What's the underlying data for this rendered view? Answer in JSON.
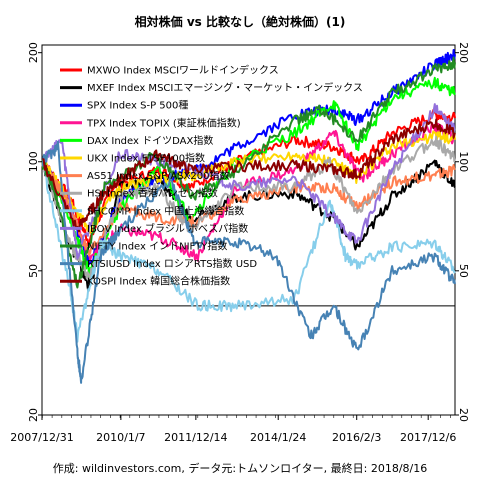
{
  "title": "相対株価 vs 比較なし（絶対株価）(1)",
  "footer": {
    "credit_label": "作成: wildinvestors.com, データ元:トムソンロイター, 最終日: 2018/8/16"
  },
  "chart_data": {
    "type": "line",
    "title": "相対株価 vs 比較なし（絶対株価）(1)",
    "y_scale": "log",
    "ylim": [
      20,
      210
    ],
    "y_ticks": [
      20,
      50,
      100,
      200
    ],
    "x_ticks": [
      "2007/12/31",
      "2010/1/7",
      "2011/12/14",
      "2014/1/24",
      "2016/2/3",
      "2017/12/6"
    ],
    "x_range": [
      2007.99,
      2018.62
    ],
    "reference_line": 40,
    "grid": false,
    "legend_position": "top-left",
    "series": [
      {
        "name": "MXWO Index MSCIワールドインデックス",
        "color": "#ff0000",
        "points": [
          [
            2008.0,
            100
          ],
          [
            2008.7,
            80
          ],
          [
            2009.2,
            60
          ],
          [
            2009.8,
            85
          ],
          [
            2011.0,
            95
          ],
          [
            2011.8,
            85
          ],
          [
            2013.0,
            100
          ],
          [
            2014.5,
            115
          ],
          [
            2015.5,
            110
          ],
          [
            2016.2,
            100
          ],
          [
            2017.0,
            120
          ],
          [
            2018.1,
            135
          ],
          [
            2018.62,
            132
          ]
        ]
      },
      {
        "name": "MXEF Index MSCIエマージング・マーケット・インデックス",
        "color": "#000000",
        "points": [
          [
            2008.0,
            100
          ],
          [
            2008.7,
            60
          ],
          [
            2009.2,
            45
          ],
          [
            2010.0,
            85
          ],
          [
            2011.0,
            90
          ],
          [
            2011.8,
            70
          ],
          [
            2013.0,
            80
          ],
          [
            2014.5,
            82
          ],
          [
            2015.5,
            70
          ],
          [
            2016.1,
            58
          ],
          [
            2017.0,
            80
          ],
          [
            2018.1,
            100
          ],
          [
            2018.62,
            85
          ]
        ]
      },
      {
        "name": "SPX Index S-P 500種",
        "color": "#0000ff",
        "points": [
          [
            2008.0,
            100
          ],
          [
            2008.7,
            75
          ],
          [
            2009.2,
            52
          ],
          [
            2010.0,
            78
          ],
          [
            2011.0,
            90
          ],
          [
            2012.0,
            95
          ],
          [
            2013.0,
            110
          ],
          [
            2014.5,
            135
          ],
          [
            2015.5,
            140
          ],
          [
            2016.1,
            130
          ],
          [
            2017.0,
            155
          ],
          [
            2018.1,
            185
          ],
          [
            2018.62,
            198
          ]
        ]
      },
      {
        "name": "TPX Index TOPIX (東証株価指数)",
        "color": "#ff1493",
        "points": [
          [
            2008.0,
            100
          ],
          [
            2008.7,
            75
          ],
          [
            2009.2,
            55
          ],
          [
            2010.0,
            65
          ],
          [
            2011.0,
            62
          ],
          [
            2012.0,
            55
          ],
          [
            2013.0,
            85
          ],
          [
            2014.5,
            95
          ],
          [
            2015.5,
            120
          ],
          [
            2016.2,
            90
          ],
          [
            2017.0,
            105
          ],
          [
            2018.1,
            125
          ],
          [
            2018.62,
            115
          ]
        ]
      },
      {
        "name": "DAX Index ドイツDAX指数",
        "color": "#00ff00",
        "points": [
          [
            2008.0,
            100
          ],
          [
            2008.7,
            70
          ],
          [
            2009.2,
            50
          ],
          [
            2010.0,
            75
          ],
          [
            2011.0,
            95
          ],
          [
            2011.8,
            70
          ],
          [
            2013.0,
            100
          ],
          [
            2014.5,
            120
          ],
          [
            2015.5,
            145
          ],
          [
            2016.1,
            110
          ],
          [
            2017.0,
            150
          ],
          [
            2018.1,
            165
          ],
          [
            2018.62,
            155
          ]
        ]
      },
      {
        "name": "UKX Index FTSE100指数",
        "color": "#ffd700",
        "points": [
          [
            2008.0,
            100
          ],
          [
            2008.7,
            78
          ],
          [
            2009.2,
            65
          ],
          [
            2010.0,
            85
          ],
          [
            2011.0,
            90
          ],
          [
            2012.0,
            92
          ],
          [
            2013.0,
            100
          ],
          [
            2014.5,
            105
          ],
          [
            2015.5,
            100
          ],
          [
            2016.1,
            90
          ],
          [
            2017.0,
            110
          ],
          [
            2018.1,
            118
          ],
          [
            2018.62,
            115
          ]
        ]
      },
      {
        "name": "AS51 Index S&P/ASX200指数",
        "color": "#ff7f50",
        "points": [
          [
            2008.0,
            100
          ],
          [
            2008.7,
            75
          ],
          [
            2009.2,
            55
          ],
          [
            2010.0,
            75
          ],
          [
            2011.0,
            70
          ],
          [
            2012.0,
            68
          ],
          [
            2013.0,
            78
          ],
          [
            2014.5,
            85
          ],
          [
            2015.5,
            85
          ],
          [
            2016.1,
            75
          ],
          [
            2017.0,
            88
          ],
          [
            2018.1,
            92
          ],
          [
            2018.62,
            95
          ]
        ]
      },
      {
        "name": "HSI Index 香港ハンセン指数",
        "color": "#a9a9a9",
        "points": [
          [
            2008.0,
            100
          ],
          [
            2008.7,
            60
          ],
          [
            2009.2,
            48
          ],
          [
            2010.0,
            80
          ],
          [
            2011.0,
            85
          ],
          [
            2011.8,
            65
          ],
          [
            2013.0,
            85
          ],
          [
            2014.5,
            85
          ],
          [
            2015.4,
            100
          ],
          [
            2016.1,
            72
          ],
          [
            2017.0,
            95
          ],
          [
            2018.1,
            115
          ],
          [
            2018.62,
            102
          ]
        ]
      },
      {
        "name": "SHCOMP Index 中国上海総合指数",
        "color": "#87ceeb",
        "points": [
          [
            2008.0,
            100
          ],
          [
            2008.7,
            45
          ],
          [
            2008.9,
            33
          ],
          [
            2009.5,
            60
          ],
          [
            2010.0,
            55
          ],
          [
            2011.0,
            50
          ],
          [
            2012.0,
            40
          ],
          [
            2013.0,
            40
          ],
          [
            2014.5,
            42
          ],
          [
            2015.4,
            78
          ],
          [
            2015.8,
            55
          ],
          [
            2016.1,
            52
          ],
          [
            2017.0,
            58
          ],
          [
            2018.1,
            60
          ],
          [
            2018.62,
            50
          ]
        ]
      },
      {
        "name": "IBOV Index ブラジル ボベスパ指数",
        "color": "#9370db",
        "points": [
          [
            2008.0,
            100
          ],
          [
            2008.5,
            115
          ],
          [
            2008.9,
            55
          ],
          [
            2010.0,
            105
          ],
          [
            2011.0,
            100
          ],
          [
            2012.0,
            95
          ],
          [
            2013.0,
            85
          ],
          [
            2014.5,
            90
          ],
          [
            2015.5,
            70
          ],
          [
            2016.1,
            60
          ],
          [
            2017.0,
            95
          ],
          [
            2018.1,
            140
          ],
          [
            2018.62,
            122
          ]
        ]
      },
      {
        "name": "NIFTY Index インドNIFTY指数",
        "color": "#228b22",
        "points": [
          [
            2008.0,
            100
          ],
          [
            2008.3,
            85
          ],
          [
            2008.9,
            45
          ],
          [
            2009.6,
            85
          ],
          [
            2010.9,
            105
          ],
          [
            2011.9,
            80
          ],
          [
            2013.0,
            95
          ],
          [
            2014.5,
            130
          ],
          [
            2015.2,
            140
          ],
          [
            2016.1,
            115
          ],
          [
            2017.0,
            155
          ],
          [
            2018.1,
            180
          ],
          [
            2018.62,
            188
          ]
        ]
      },
      {
        "name": "RTSIUSD Index ロシアRTS指数 USD",
        "color": "#4682b4",
        "points": [
          [
            2008.0,
            100
          ],
          [
            2008.4,
            110
          ],
          [
            2008.9,
            30
          ],
          [
            2009.0,
            25
          ],
          [
            2009.5,
            55
          ],
          [
            2010.0,
            65
          ],
          [
            2011.3,
            90
          ],
          [
            2011.9,
            60
          ],
          [
            2013.0,
            60
          ],
          [
            2014.0,
            55
          ],
          [
            2014.9,
            33
          ],
          [
            2015.5,
            40
          ],
          [
            2016.1,
            30
          ],
          [
            2017.0,
            50
          ],
          [
            2018.1,
            55
          ],
          [
            2018.62,
            46
          ]
        ]
      },
      {
        "name": "KOSPI Index 韓国総合株価指数",
        "color": "#8b0000",
        "points": [
          [
            2008.0,
            100
          ],
          [
            2008.9,
            65
          ],
          [
            2009.5,
            80
          ],
          [
            2010.0,
            90
          ],
          [
            2011.0,
            105
          ],
          [
            2011.8,
            95
          ],
          [
            2013.0,
            97
          ],
          [
            2014.5,
            98
          ],
          [
            2015.5,
            95
          ],
          [
            2016.1,
            92
          ],
          [
            2017.0,
            115
          ],
          [
            2018.1,
            128
          ],
          [
            2018.62,
            120
          ]
        ]
      }
    ]
  }
}
